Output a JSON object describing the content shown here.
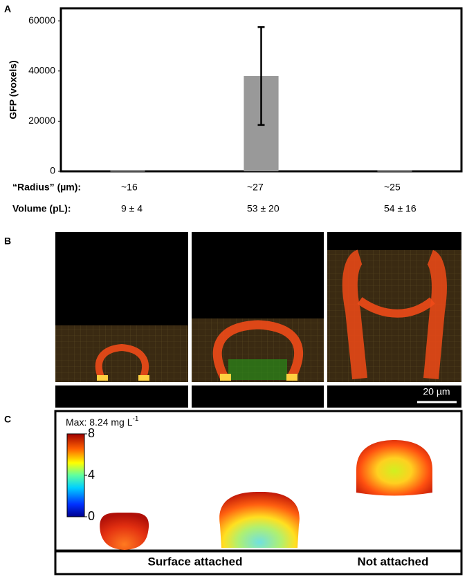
{
  "panel_labels": [
    "A",
    "B",
    "C"
  ],
  "chart_data": {
    "type": "bar",
    "y_label": "GFP (voxels)",
    "categories": [
      null,
      null,
      null
    ],
    "values": [
      300,
      38000,
      300
    ],
    "errors": [
      null,
      19500,
      null
    ],
    "color": "#999999",
    "ylim": [
      0,
      65000
    ],
    "yticks": [
      0,
      20000,
      40000,
      60000
    ]
  },
  "rows": [
    {
      "header": "“Radius” (µm):",
      "cells": [
        "~16",
        "~27",
        "~25"
      ]
    },
    {
      "header": "Volume (pL):",
      "cells": [
        "9 ± 4",
        "53 ± 20",
        "54 ± 16"
      ]
    }
  ],
  "panel_b": {
    "scale_bar": "20 µm"
  },
  "panel_c": {
    "title": "Max: 8.24 mg L",
    "title_sup": "-1",
    "clim": [
      0,
      8
    ],
    "ticks": [
      0,
      4,
      8
    ],
    "labels": [
      "Surface attached",
      "Not attached"
    ]
  }
}
